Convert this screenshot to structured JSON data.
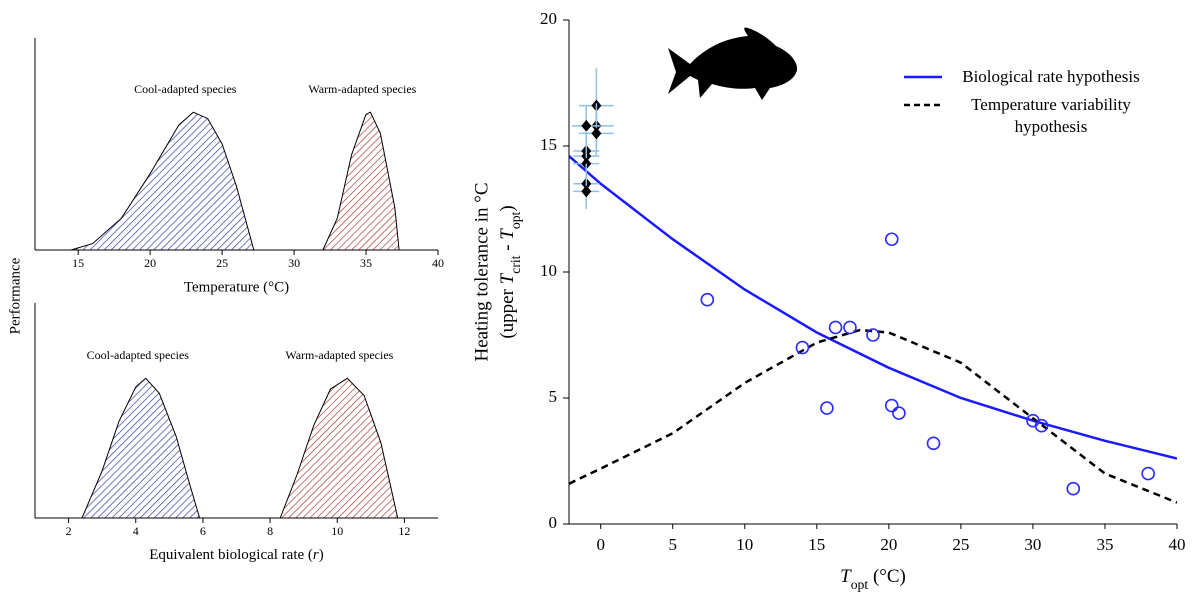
{
  "chart_data": [
    {
      "type": "area",
      "y_label": "Performance",
      "x_label": "Temperature (°C)",
      "xlim": [
        12,
        40
      ],
      "xticks": [
        15,
        20,
        25,
        30,
        35,
        40
      ],
      "ylim": [
        0,
        1
      ],
      "series": [
        {
          "name": "Cool-adapted species",
          "color": "#3a3aa0",
          "x": [
            14.5,
            16,
            18,
            20,
            22,
            23,
            24,
            25,
            26,
            27.2
          ],
          "values": [
            0,
            0.03,
            0.15,
            0.36,
            0.59,
            0.65,
            0.62,
            0.5,
            0.3,
            0
          ]
        },
        {
          "name": "Warm-adapted species",
          "color": "#b03a3a",
          "x": [
            32,
            33,
            34,
            35,
            35.3,
            36,
            37,
            37.3
          ],
          "values": [
            0,
            0.15,
            0.45,
            0.64,
            0.65,
            0.55,
            0.2,
            0
          ]
        }
      ]
    },
    {
      "type": "area",
      "x_label": [
        "Equivalent biological rate (",
        "r",
        ")"
      ],
      "xlim": [
        1,
        13
      ],
      "xticks": [
        2,
        4,
        6,
        8,
        10,
        12
      ],
      "ylim": [
        0,
        1
      ],
      "series": [
        {
          "name": "Cool-adapted species",
          "color": "#3a3aa0",
          "x": [
            2.4,
            3,
            3.5,
            4,
            4.3,
            4.7,
            5.2,
            5.6,
            5.9
          ],
          "values": [
            0,
            0.22,
            0.45,
            0.61,
            0.65,
            0.58,
            0.38,
            0.16,
            0
          ]
        },
        {
          "name": "Warm-adapted species",
          "color": "#b03a3a",
          "x": [
            8.3,
            8.8,
            9.3,
            9.8,
            10.3,
            10.8,
            11.3,
            11.6,
            11.8
          ],
          "values": [
            0,
            0.2,
            0.43,
            0.6,
            0.65,
            0.57,
            0.35,
            0.14,
            0
          ]
        }
      ]
    },
    {
      "type": "line",
      "y_label": [
        "Heating tolerance in °C",
        "(upper ",
        "T",
        "crit",
        " - ",
        "T",
        "opt",
        ")"
      ],
      "x_label": [
        "T",
        "opt",
        " (°C)"
      ],
      "xlim": [
        -2.2,
        40
      ],
      "xticks": [
        0,
        5,
        10,
        15,
        20,
        25,
        30,
        35,
        40
      ],
      "ylim": [
        0,
        20
      ],
      "yticks": [
        0,
        5,
        10,
        15,
        20
      ],
      "series": [
        {
          "name": "Biological rate hypothesis",
          "color": "#1a1aff",
          "x": [
            -2.2,
            0,
            5,
            10,
            15,
            20,
            25,
            30,
            35,
            40
          ],
          "values": [
            14.6,
            13.5,
            11.3,
            9.3,
            7.6,
            6.2,
            5.0,
            4.1,
            3.3,
            2.6
          ]
        },
        {
          "name": "Temperature variability hypothesis",
          "color": "#000000",
          "style": "dashed",
          "x": [
            -2.2,
            0,
            5,
            10,
            15,
            18,
            20,
            25,
            30,
            35,
            40
          ],
          "values": [
            1.6,
            2.2,
            3.6,
            5.6,
            7.2,
            7.7,
            7.6,
            6.4,
            4.2,
            2.0,
            0.85
          ]
        },
        {
          "type": "scatter",
          "marker": "circle",
          "color": "#2b2bff",
          "x": [
            7.4,
            14,
            15.7,
            16.3,
            17.3,
            18.9,
            20.2,
            20.2,
            20.7,
            23.1,
            30,
            30.6,
            32.8,
            38
          ],
          "values": [
            8.9,
            7.0,
            4.6,
            7.8,
            7.8,
            7.5,
            11.3,
            4.7,
            4.4,
            3.2,
            4.1,
            3.9,
            1.4,
            2.0
          ]
        },
        {
          "type": "scatter",
          "marker": "diamond",
          "color": "#000000",
          "error_color": "#8ec0ea",
          "x": [
            -0.3,
            -0.3,
            -0.3,
            -1,
            -1,
            -1,
            -1,
            -1,
            -1
          ],
          "values": [
            16.6,
            15.8,
            15.5,
            15.8,
            14.8,
            14.6,
            14.3,
            13.5,
            13.2
          ],
          "xerr": [
            1.2,
            1.2,
            1.2,
            1.0,
            0.9,
            0.9,
            0.9,
            0.9,
            0.9
          ],
          "yerr": [
            1.5,
            0.9,
            0.9,
            0.8,
            0.8,
            0.8,
            0.8,
            0.8,
            0.7
          ]
        }
      ]
    }
  ]
}
